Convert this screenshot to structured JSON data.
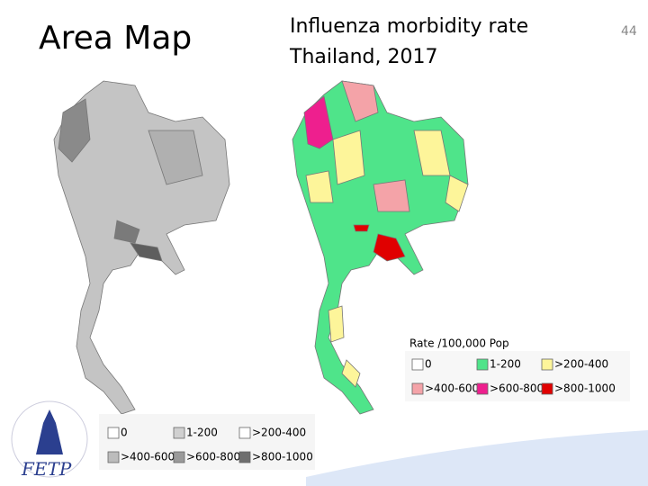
{
  "title": "Area Map",
  "heading": [
    "Influenza morbidity rate",
    "Thailand, 2017"
  ],
  "page_number": "44",
  "left_legend": {
    "items": [
      {
        "label": "0",
        "color": "#ffffff"
      },
      {
        "label": "1-200",
        "color": "#d0d0d0"
      },
      {
        "label": ">200-400",
        "color": "#ffffff"
      },
      {
        "label": ">400-600",
        "color": "#bcbcbc"
      },
      {
        "label": ">600-800",
        "color": "#9a9a9a"
      },
      {
        "label": ">800-1000",
        "color": "#6e6e6e"
      }
    ]
  },
  "right_legend": {
    "title": "Rate /100,000 Pop",
    "items": [
      {
        "label": "0",
        "color": "#ffffff"
      },
      {
        "label": "1-200",
        "color": "#4fe48a"
      },
      {
        "label": ">200-400",
        "color": "#fdf59a"
      },
      {
        "label": ">400-600",
        "color": "#f4a3a8"
      },
      {
        "label": ">600-800",
        "color": "#ee1f8e"
      },
      {
        "label": ">800-1000",
        "color": "#e00000"
      }
    ]
  },
  "logo": "FETP"
}
